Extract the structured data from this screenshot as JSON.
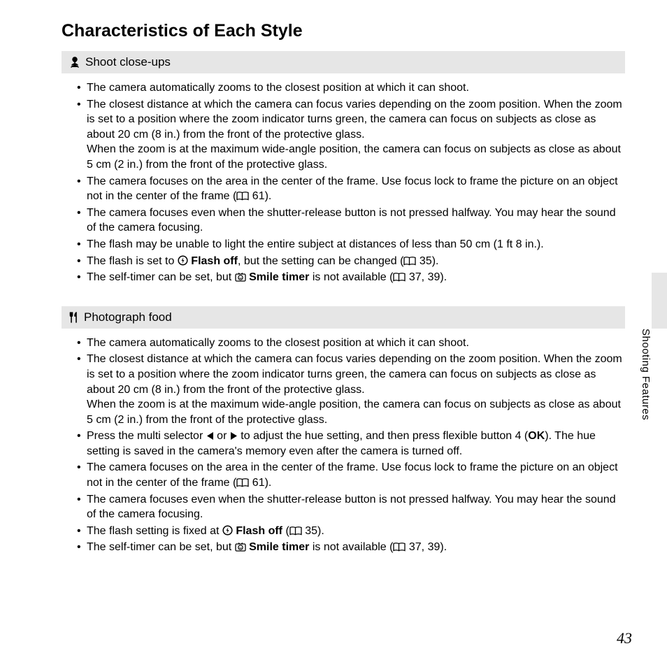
{
  "page": {
    "title": "Characteristics of Each Style",
    "number": "43",
    "side_label": "Shooting Features"
  },
  "sections": [
    {
      "icon": "closeup-icon",
      "title": " Shoot close-ups",
      "bullets": [
        {
          "html": "The camera automatically zooms to the closest position at which it can shoot."
        },
        {
          "html": "The closest distance at which the camera can focus varies depending on the zoom position. When the zoom is set to a position where the zoom indicator turns green, the camera can focus on subjects as close as about 20 cm (8 in.) from the front of the protective glass.<br>When the zoom is at the maximum wide-angle position, the camera can focus on subjects as close as about 5 cm (2 in.) from the front of the protective glass."
        },
        {
          "html": "The camera focuses on the area in the center of the frame. Use focus lock to frame the picture on an object not in the center of the frame ([[BOOK]] 61)."
        },
        {
          "html": "The camera focuses even when the shutter-release button is not pressed halfway. You may hear the sound of the camera focusing."
        },
        {
          "html": "The flash may be unable to light the entire subject at distances of less than 50 cm (1 ft 8 in.)."
        },
        {
          "html": "The flash is set to [[FLASHOFF]] <b>Flash off</b>, but the setting can be changed ([[BOOK]] 35)."
        },
        {
          "html": "The self-timer can be set, but [[SMILE]] <b>Smile timer</b> is not available ([[BOOK]] 37, 39)."
        }
      ]
    },
    {
      "icon": "food-icon",
      "title": " Photograph food",
      "bullets": [
        {
          "html": "The camera automatically zooms to the closest position at which it can shoot."
        },
        {
          "html": "The closest distance at which the camera can focus varies depending on the zoom position. When the zoom is set to a position where the zoom indicator turns green, the camera can focus on subjects as close as about 20 cm (8 in.) from the front of the protective glass.<br>When the zoom is at the maximum wide-angle position, the camera can focus on subjects as close as about 5 cm (2 in.) from the front of the protective glass."
        },
        {
          "html": "Press the multi selector [[LEFT]] or [[RIGHT]] to adjust the hue setting, and then press flexible button 4 (<b>OK</b>). The hue setting is saved in the camera's memory even after the camera is turned off."
        },
        {
          "html": "The camera focuses on the area in the center of the frame. Use focus lock to frame the picture on an object not in the center of the frame ([[BOOK]] 61)."
        },
        {
          "html": "The camera focuses even when the shutter-release button is not pressed halfway. You may hear the sound of the camera focusing."
        },
        {
          "html": "The flash setting is fixed at [[FLASHOFF]] <b>Flash off</b> ([[BOOK]] 35)."
        },
        {
          "html": "The self-timer can be set, but [[SMILE]] <b>Smile timer</b> is not available ([[BOOK]] 37, 39)."
        }
      ]
    }
  ]
}
